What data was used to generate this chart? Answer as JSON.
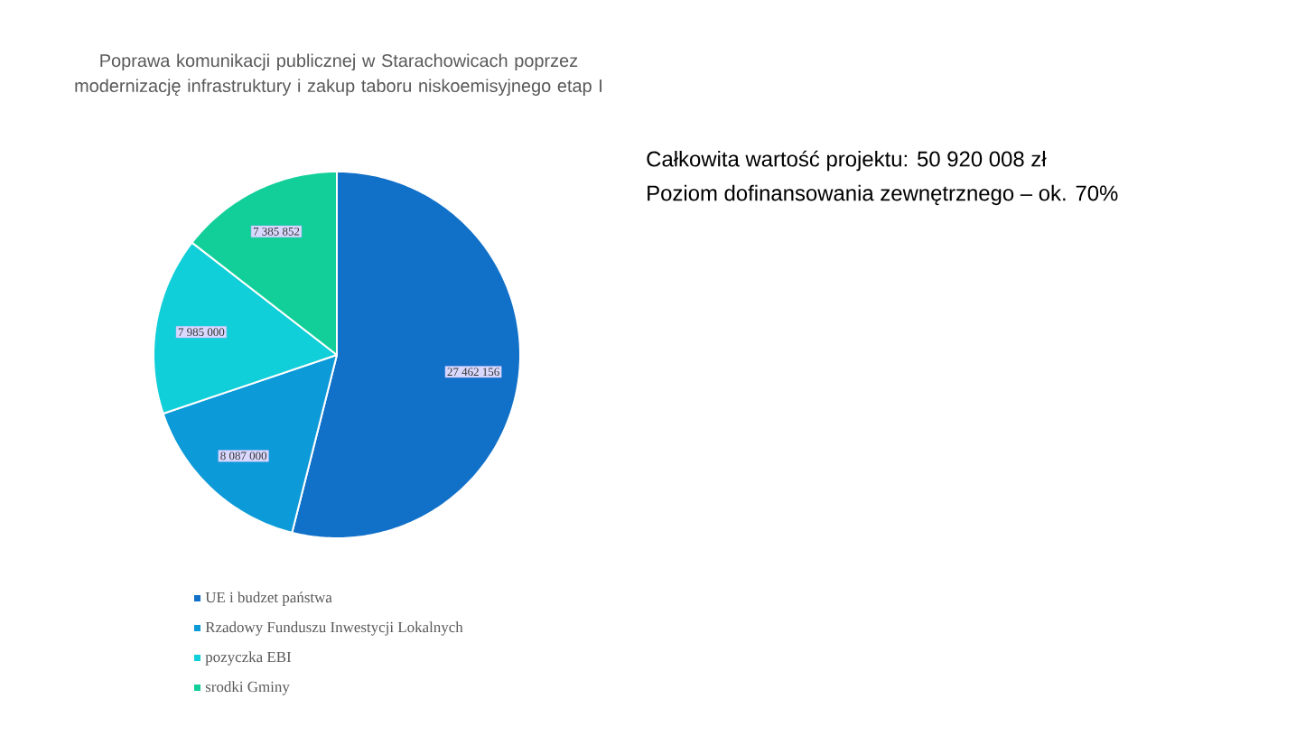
{
  "chart_data": {
    "type": "pie",
    "title": "Poprawa komunikacji publicznej w Starachowicach poprzez modernizację infrastruktury i zakup taboru niskoemisyjnego etap I",
    "categories": [
      "UE i budzet państwa",
      "Rzadowy Funduszu Inwestycji Lokalnych",
      "pozyczka EBI",
      "srodki Gminy"
    ],
    "values": [
      27462156,
      8087000,
      7985000,
      7385852
    ],
    "value_labels": [
      "27 462 156",
      "8 087 000",
      "7 985 000",
      "7 385 852"
    ],
    "colors": [
      "#1170c8",
      "#0c9ad8",
      "#11cfd8",
      "#12cf9a"
    ],
    "legend": "bottom",
    "annotations": [
      "Całkowita wartość projektu: 50 920 008 zł",
      "Poziom dofinansowania zewnętrznego – ok. 70%"
    ]
  }
}
